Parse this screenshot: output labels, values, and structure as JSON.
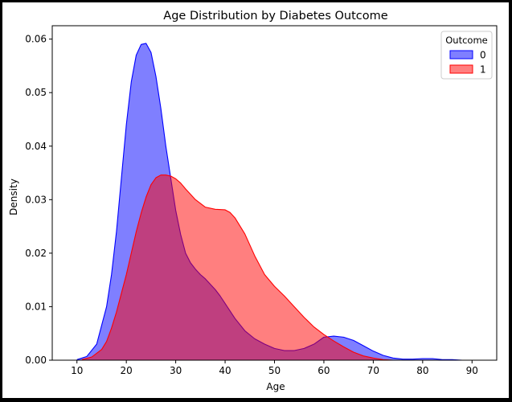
{
  "chart_data": {
    "type": "area",
    "title": "Age Distribution by Diabetes Outcome",
    "xlabel": "Age",
    "ylabel": "Density",
    "xlim": [
      5,
      95
    ],
    "ylim": [
      0,
      0.0625
    ],
    "xticks": [
      10,
      20,
      30,
      40,
      50,
      60,
      70,
      80,
      90
    ],
    "yticks": [
      0.0,
      0.01,
      0.02,
      0.03,
      0.04,
      0.05,
      0.06
    ],
    "ytick_labels": [
      "0.00",
      "0.01",
      "0.02",
      "0.03",
      "0.04",
      "0.05",
      "0.06"
    ],
    "grid": false,
    "legend": {
      "title": "Outcome",
      "position": "top-right"
    },
    "series": [
      {
        "name": "0",
        "color": "#0000ff",
        "x": [
          10,
          12,
          14,
          16,
          17,
          18,
          19,
          20,
          21,
          22,
          23,
          24,
          25,
          26,
          27,
          28,
          29,
          30,
          31,
          32,
          33,
          34,
          35,
          36,
          37,
          38,
          39,
          40,
          42,
          44,
          46,
          48,
          50,
          52,
          54,
          56,
          58,
          60,
          62,
          64,
          66,
          68,
          70,
          72,
          74,
          76,
          78,
          80,
          82,
          84,
          86,
          88,
          90,
          91
        ],
        "y": [
          0.0001,
          0.0007,
          0.003,
          0.01,
          0.016,
          0.024,
          0.034,
          0.044,
          0.052,
          0.057,
          0.059,
          0.0592,
          0.0575,
          0.053,
          0.047,
          0.04,
          0.034,
          0.028,
          0.0235,
          0.02,
          0.0182,
          0.017,
          0.016,
          0.0152,
          0.0142,
          0.0132,
          0.012,
          0.0106,
          0.0078,
          0.0055,
          0.004,
          0.003,
          0.0022,
          0.0018,
          0.0018,
          0.0022,
          0.003,
          0.0043,
          0.0045,
          0.0043,
          0.0037,
          0.0027,
          0.0017,
          0.0009,
          0.0004,
          0.0002,
          0.0002,
          0.0003,
          0.0003,
          0.0001,
          0.0001,
          0.0,
          0.0,
          0.0
        ]
      },
      {
        "name": "1",
        "color": "#ff0000",
        "x": [
          11,
          13,
          15,
          16,
          17,
          18,
          19,
          20,
          21,
          22,
          23,
          24,
          25,
          26,
          27,
          28,
          29,
          30,
          31,
          32,
          34,
          36,
          38,
          40,
          41,
          42,
          44,
          46,
          48,
          50,
          52,
          54,
          56,
          58,
          60,
          62,
          64,
          66,
          68,
          70,
          72,
          74
        ],
        "y": [
          0.0001,
          0.0006,
          0.002,
          0.0035,
          0.006,
          0.009,
          0.0125,
          0.016,
          0.02,
          0.024,
          0.0275,
          0.0305,
          0.0328,
          0.0341,
          0.0346,
          0.0346,
          0.0344,
          0.0339,
          0.0331,
          0.032,
          0.03,
          0.0286,
          0.0282,
          0.0281,
          0.0276,
          0.0266,
          0.0236,
          0.0195,
          0.016,
          0.0138,
          0.012,
          0.01,
          0.008,
          0.0062,
          0.0048,
          0.0036,
          0.0025,
          0.0015,
          0.0008,
          0.0004,
          0.0001,
          0.0
        ]
      }
    ]
  }
}
